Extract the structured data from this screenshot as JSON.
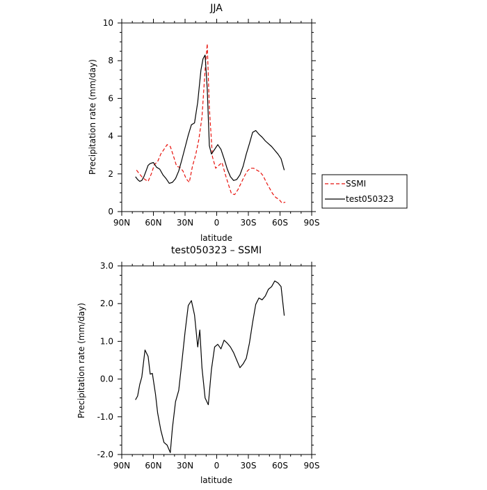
{
  "chart_data": [
    {
      "type": "line",
      "title": "JJA",
      "xlabel": "latitude",
      "ylabel": "Precipitation rate (mm/day)",
      "xlim": [
        -90,
        90
      ],
      "ylim": [
        0,
        10
      ],
      "xticks": [
        -90,
        -60,
        -30,
        0,
        30,
        60,
        90
      ],
      "xtick_labels": [
        "90N",
        "60N",
        "30N",
        "0",
        "30S",
        "60S",
        "90S"
      ],
      "yticks": [
        0,
        2,
        4,
        6,
        8,
        10
      ],
      "ytick_labels": [
        "0",
        "2",
        "4",
        "6",
        "8",
        "10"
      ],
      "legend_position": "right",
      "series": [
        {
          "name": "SSMI",
          "color": "#e8120c",
          "dashed": true,
          "x": [
            -76,
            -74,
            -71,
            -68,
            -65,
            -62,
            -59,
            -56,
            -53,
            -50,
            -47,
            -44,
            -41,
            -38,
            -35,
            -32,
            -29,
            -26,
            -23,
            -20,
            -17,
            -14,
            -11,
            -9,
            -7,
            -4,
            -1,
            2,
            5,
            8,
            11,
            14,
            17,
            20,
            23,
            26,
            29,
            32,
            35,
            38,
            41,
            44,
            47,
            50,
            53,
            56,
            59,
            62,
            65
          ],
          "values": [
            2.2,
            2.05,
            1.85,
            1.7,
            1.6,
            2.0,
            2.5,
            2.65,
            3.05,
            3.3,
            3.55,
            3.45,
            2.95,
            2.4,
            2.35,
            2.15,
            1.75,
            1.55,
            2.4,
            3.0,
            3.8,
            5.0,
            7.5,
            8.9,
            5.5,
            2.9,
            2.3,
            2.45,
            2.6,
            2.0,
            1.45,
            0.95,
            0.9,
            1.15,
            1.5,
            1.85,
            2.15,
            2.3,
            2.3,
            2.2,
            2.1,
            1.9,
            1.55,
            1.25,
            0.95,
            0.75,
            0.65,
            0.45,
            0.5
          ]
        },
        {
          "name": "test050323",
          "color": "#000000",
          "dashed": false,
          "x": [
            -77,
            -75,
            -73,
            -71,
            -69,
            -67,
            -65,
            -63,
            -60,
            -57,
            -54,
            -51,
            -48,
            -45,
            -42,
            -39,
            -36,
            -33,
            -30,
            -27,
            -24,
            -21,
            -18,
            -15,
            -13,
            -11,
            -9,
            -7,
            -5,
            -2,
            1,
            4,
            7,
            10,
            13,
            16,
            19,
            22,
            25,
            28,
            31,
            34,
            37,
            40,
            43,
            46,
            49,
            52,
            55,
            58,
            61,
            64
          ],
          "values": [
            1.85,
            1.7,
            1.6,
            1.65,
            1.85,
            2.15,
            2.45,
            2.55,
            2.6,
            2.35,
            2.25,
            1.95,
            1.75,
            1.5,
            1.55,
            1.75,
            2.15,
            2.75,
            3.4,
            4.05,
            4.6,
            4.7,
            5.8,
            7.5,
            8.1,
            8.3,
            6.5,
            3.5,
            3.05,
            3.3,
            3.55,
            3.3,
            2.8,
            2.25,
            1.85,
            1.65,
            1.7,
            1.95,
            2.4,
            3.05,
            3.6,
            4.2,
            4.3,
            4.1,
            3.95,
            3.75,
            3.6,
            3.45,
            3.25,
            3.05,
            2.8,
            2.2
          ]
        }
      ]
    },
    {
      "type": "line",
      "title": "test050323 – SSMI",
      "xlabel": "latitude",
      "ylabel": "Precipitation rate (mm/day)",
      "xlim": [
        -90,
        90
      ],
      "ylim": [
        -2.0,
        3.0
      ],
      "xticks": [
        -90,
        -60,
        -30,
        0,
        30,
        60,
        90
      ],
      "xtick_labels": [
        "90N",
        "60N",
        "30N",
        "0",
        "30S",
        "60S",
        "90S"
      ],
      "yticks": [
        -2.0,
        -1.0,
        0.0,
        1.0,
        2.0,
        3.0
      ],
      "ytick_labels": [
        "-2.0",
        "-1.0",
        "0.0",
        "1.0",
        "2.0",
        "3.0"
      ],
      "series": [
        {
          "color": "#000000",
          "dashed": false,
          "x": [
            -77,
            -75,
            -73,
            -71,
            -68,
            -65,
            -63,
            -61,
            -58,
            -56,
            -53,
            -50,
            -47,
            -44,
            -42,
            -39,
            -36,
            -33,
            -30,
            -27,
            -24,
            -21,
            -18,
            -16,
            -14,
            -11,
            -8,
            -5,
            -2,
            1,
            4,
            7,
            10,
            13,
            16,
            19,
            22,
            25,
            28,
            31,
            34,
            37,
            40,
            43,
            46,
            49,
            52,
            55,
            58,
            61,
            64
          ],
          "values": [
            -0.55,
            -0.45,
            -0.15,
            0.05,
            0.77,
            0.6,
            0.13,
            0.15,
            -0.4,
            -0.9,
            -1.35,
            -1.68,
            -1.75,
            -1.95,
            -1.3,
            -0.6,
            -0.3,
            0.45,
            1.25,
            1.95,
            2.08,
            1.7,
            0.85,
            1.3,
            0.3,
            -0.5,
            -0.68,
            0.25,
            0.85,
            0.92,
            0.8,
            1.03,
            0.95,
            0.85,
            0.7,
            0.5,
            0.3,
            0.4,
            0.55,
            0.95,
            1.5,
            1.98,
            2.15,
            2.1,
            2.2,
            2.38,
            2.45,
            2.6,
            2.55,
            2.45,
            1.68
          ]
        }
      ]
    }
  ]
}
